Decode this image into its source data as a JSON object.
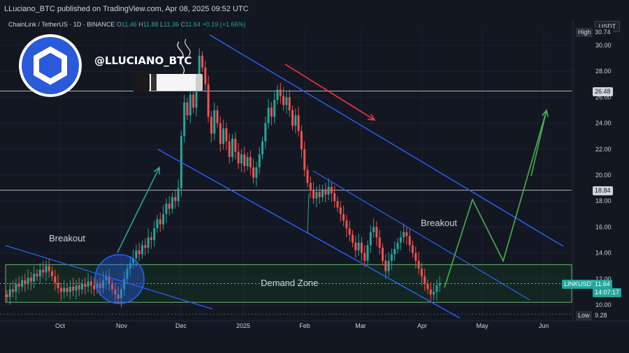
{
  "header": {
    "published": "LLuciano_BTC published on TradingView.com, Apr 08, 2025 09:52 UTC"
  },
  "symbol": {
    "name": "ChainLink / TetherUS · 1D · BINANCE",
    "o_label": "O",
    "o": "11.46",
    "h_label": "H",
    "h": "11.88",
    "l_label": "L",
    "l": "11.36",
    "c_label": "C",
    "c": "11.64",
    "change": "+0.19 (+1.66%)"
  },
  "currency_button": "USDT",
  "branding": {
    "handle": "@LLUCIANO_BTC"
  },
  "annotations": {
    "breakout_left": "Breakout",
    "breakout_right": "Breakout",
    "demand_zone": "Demand Zone"
  },
  "price_axis": {
    "ticks": [
      "30.00",
      "28.00",
      "26.00",
      "24.00",
      "22.00",
      "20.00",
      "18.00",
      "16.00",
      "14.00",
      "12.00",
      "10.00"
    ],
    "high_label": "High",
    "high_value": "30.74",
    "low_label": "Low",
    "low_value": "9.28",
    "level_upper": "26.48",
    "level_mid": "18.84",
    "ticker": "LINKUSDT",
    "last_price": "11.64",
    "countdown": "14:07:17"
  },
  "time_axis": {
    "ticks": [
      "Oct",
      "Nov",
      "Dec",
      "2025",
      "Feb",
      "Mar",
      "Apr",
      "May",
      "Jun"
    ]
  },
  "colors": {
    "background": "#131722",
    "up": "#26a69a",
    "down": "#ef5350",
    "channel": "#2962ff",
    "projection": "#4caf50",
    "bear_arrow": "#f23645",
    "demand_zone": "#1b5e20"
  },
  "chart_data": {
    "type": "candlestick",
    "x": [
      "Oct",
      "Nov",
      "Dec",
      "2025",
      "Feb",
      "Mar",
      "Apr",
      "May",
      "Jun"
    ],
    "ylim": [
      9.28,
      30.74
    ],
    "series": [
      {
        "values": [
          [
            10.8,
            10.6
          ],
          [
            10.6,
            11.2
          ],
          [
            11.2,
            11.0
          ],
          [
            11.0,
            11.6
          ],
          [
            11.6,
            11.4
          ],
          [
            11.4,
            11.9
          ],
          [
            11.9,
            11.6
          ],
          [
            11.6,
            12.1
          ],
          [
            12.1,
            11.8
          ],
          [
            11.8,
            12.4
          ],
          [
            12.4,
            12.2
          ],
          [
            12.2,
            12.7
          ],
          [
            12.7,
            12.5
          ],
          [
            12.5,
            13.0
          ],
          [
            13.0,
            12.6
          ],
          [
            12.6,
            12.2
          ],
          [
            12.2,
            11.7
          ],
          [
            11.7,
            11.3
          ],
          [
            11.3,
            11.0
          ],
          [
            11.0,
            11.3
          ],
          [
            11.3,
            11.0
          ],
          [
            11.0,
            11.4
          ],
          [
            11.4,
            11.1
          ],
          [
            11.1,
            11.5
          ],
          [
            11.5,
            11.2
          ],
          [
            11.2,
            11.6
          ],
          [
            11.6,
            11.4
          ],
          [
            11.4,
            11.8
          ],
          [
            11.8,
            11.5
          ],
          [
            11.5,
            11.2
          ],
          [
            11.2,
            11.6
          ],
          [
            11.6,
            11.3
          ],
          [
            11.3,
            11.9
          ],
          [
            11.9,
            12.2
          ],
          [
            12.2,
            11.6
          ],
          [
            11.6,
            11.2
          ],
          [
            11.2,
            10.8
          ],
          [
            10.8,
            10.5
          ],
          [
            10.5,
            11.2
          ],
          [
            11.2,
            12.0
          ],
          [
            12.0,
            12.8
          ],
          [
            12.8,
            13.2
          ],
          [
            13.2,
            13.6
          ],
          [
            13.6,
            14.2
          ],
          [
            14.2,
            13.9
          ],
          [
            13.9,
            14.6
          ],
          [
            14.6,
            14.4
          ],
          [
            14.4,
            15.2
          ],
          [
            15.2,
            15.0
          ],
          [
            15.0,
            15.9
          ],
          [
            15.9,
            16.6
          ],
          [
            16.6,
            16.2
          ],
          [
            16.2,
            17.0
          ],
          [
            17.0,
            17.8
          ],
          [
            17.8,
            17.4
          ],
          [
            17.4,
            18.3
          ],
          [
            18.3,
            18.0
          ],
          [
            18.0,
            19.0
          ],
          [
            19.0,
            23.0
          ],
          [
            23.0,
            25.6
          ],
          [
            25.6,
            24.6
          ],
          [
            24.6,
            26.2
          ],
          [
            26.2,
            25.2
          ],
          [
            25.2,
            27.4
          ],
          [
            27.4,
            29.2
          ],
          [
            29.2,
            28.3
          ],
          [
            28.3,
            27.0
          ],
          [
            27.0,
            24.5
          ],
          [
            24.5,
            23.2
          ],
          [
            23.2,
            25.0
          ],
          [
            25.0,
            24.0
          ],
          [
            24.0,
            22.4
          ],
          [
            22.4,
            23.6
          ],
          [
            23.6,
            22.6
          ],
          [
            22.6,
            21.4
          ],
          [
            21.4,
            22.8
          ],
          [
            22.8,
            21.8
          ],
          [
            21.8,
            20.9
          ],
          [
            20.9,
            21.6
          ],
          [
            21.6,
            20.7
          ],
          [
            20.7,
            21.4
          ],
          [
            21.4,
            20.6
          ],
          [
            20.6,
            19.8
          ],
          [
            19.8,
            20.6
          ],
          [
            20.6,
            21.6
          ],
          [
            21.6,
            22.6
          ],
          [
            22.6,
            24.0
          ],
          [
            24.0,
            25.2
          ],
          [
            25.2,
            24.5
          ],
          [
            24.5,
            25.8
          ],
          [
            25.8,
            26.6
          ],
          [
            26.6,
            26.1
          ],
          [
            26.1,
            25.4
          ],
          [
            25.4,
            26.0
          ],
          [
            26.0,
            25.0
          ],
          [
            25.0,
            23.8
          ],
          [
            23.8,
            24.6
          ],
          [
            24.6,
            23.4
          ],
          [
            23.4,
            22.0
          ],
          [
            22.0,
            20.4
          ],
          [
            20.4,
            19.4
          ],
          [
            19.4,
            18.8
          ],
          [
            18.8,
            18.2
          ],
          [
            18.2,
            18.7
          ],
          [
            18.7,
            18.3
          ],
          [
            18.3,
            18.9
          ],
          [
            18.9,
            18.5
          ],
          [
            18.5,
            19.1
          ],
          [
            19.1,
            18.6
          ],
          [
            18.6,
            18.0
          ],
          [
            18.0,
            17.5
          ],
          [
            17.5,
            17.0
          ],
          [
            17.0,
            16.5
          ],
          [
            16.5,
            15.9
          ],
          [
            15.9,
            15.4
          ],
          [
            15.4,
            14.8
          ],
          [
            14.8,
            14.2
          ],
          [
            14.2,
            14.8
          ],
          [
            14.8,
            14.0
          ],
          [
            14.0,
            13.4
          ],
          [
            13.4,
            14.6
          ],
          [
            14.6,
            15.6
          ],
          [
            15.6,
            16.0
          ],
          [
            16.0,
            15.2
          ],
          [
            15.2,
            14.4
          ],
          [
            14.4,
            13.4
          ],
          [
            13.4,
            12.6
          ],
          [
            12.6,
            13.4
          ],
          [
            13.4,
            13.9
          ],
          [
            13.9,
            14.3
          ],
          [
            14.3,
            14.8
          ],
          [
            14.8,
            15.2
          ],
          [
            15.2,
            15.6
          ],
          [
            15.6,
            15.3
          ],
          [
            15.3,
            14.6
          ],
          [
            14.6,
            14.0
          ],
          [
            14.0,
            13.4
          ],
          [
            13.4,
            12.8
          ],
          [
            12.8,
            12.2
          ],
          [
            12.2,
            11.6
          ],
          [
            11.6,
            11.2
          ],
          [
            11.2,
            10.8
          ],
          [
            10.8,
            11.0
          ],
          [
            11.0,
            11.5
          ],
          [
            11.5,
            11.64
          ]
        ]
      }
    ]
  }
}
